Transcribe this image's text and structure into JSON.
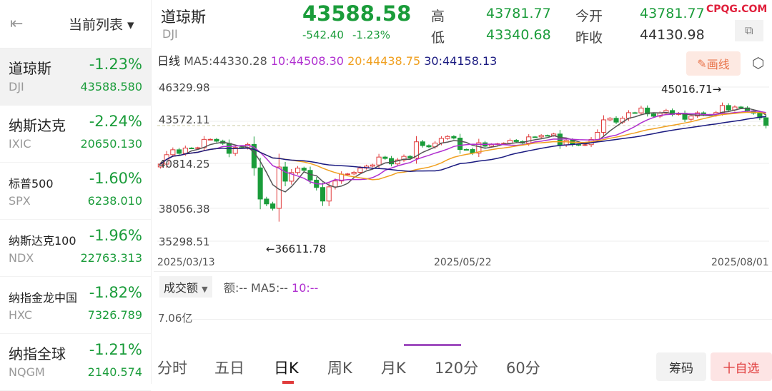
{
  "sidebar": {
    "title": "当前列表",
    "items": [
      {
        "name": "道琼斯",
        "code": "DJI",
        "pct": "-1.23%",
        "price": "43588.580"
      },
      {
        "name": "纳斯达克",
        "code": "IXIC",
        "pct": "-2.24%",
        "price": "20650.130"
      },
      {
        "name": "标普500",
        "code": "SPX",
        "pct": "-1.60%",
        "price": "6238.010"
      },
      {
        "name": "纳斯达克100",
        "code": "NDX",
        "pct": "-1.96%",
        "price": "22763.313"
      },
      {
        "name": "纳指金龙中国",
        "code": "HXC",
        "pct": "-1.82%",
        "price": "7326.789"
      },
      {
        "name": "纳指全球",
        "code": "NQGM",
        "pct": "-1.21%",
        "price": "2140.574"
      }
    ]
  },
  "header": {
    "name": "道琼斯",
    "code": "DJI",
    "price": "43588.58",
    "change": "-542.40",
    "pct": "-1.23%",
    "high_label": "高",
    "high": "43781.77",
    "low_label": "低",
    "low": "43340.68",
    "open_label": "今开",
    "open": "43781.77",
    "prev_label": "昨收",
    "prev": "44130.98",
    "watermark": "CPQG.COM"
  },
  "chart": {
    "period": "日线",
    "ma5": "MA5:44330.28",
    "ma10": "10:44508.30",
    "ma20": "20:44438.75",
    "ma30": "30:44158.13",
    "draw_label": "画线",
    "max_label": "45016.71→",
    "min_label": "←36611.78",
    "colors": {
      "up": "#e03c3c",
      "down": "#1a9c3a",
      "ma5": "#555555",
      "ma10": "#b030d0",
      "ma20": "#f0a020",
      "ma30": "#1a1a80"
    }
  },
  "volume": {
    "selector": "成交额",
    "amount": "额:--",
    "ma5": "MA5:--",
    "ma10": "10:--",
    "max_label": "7.06亿"
  },
  "tabs": [
    "分时",
    "五日",
    "日K",
    "周K",
    "月K",
    "120分",
    "60分"
  ],
  "active_tab": "日K",
  "buttons": {
    "chips": "筹码",
    "add_watch": "十自选"
  },
  "chart_data": {
    "type": "candlestick",
    "y_ticks": [
      "46329.98",
      "43572.11",
      "40814.25",
      "38056.38",
      "35298.51"
    ],
    "ylim": [
      35298.51,
      46329.98
    ],
    "x_ticks": [
      "2025/03/13",
      "2025/05/22",
      "2025/08/01"
    ],
    "last_price_line": 43572.11,
    "closes": [
      40813,
      41488,
      41841,
      41581,
      41964,
      41953,
      41985,
      42583,
      42587,
      42455,
      42300,
      41583,
      42001,
      41989,
      42225,
      40545,
      38314,
      37966,
      37645,
      40608,
      39593,
      40212,
      40524,
      40368,
      39669,
      39142,
      38170,
      39186,
      39606,
      40093,
      40113,
      40227,
      40527,
      40669,
      40752,
      41317,
      41218,
      40829,
      41113,
      41368,
      41249,
      42410,
      42140,
      42051,
      42322,
      42654,
      42792,
      42677,
      41860,
      41859,
      41603,
      42343,
      42098,
      42215,
      42270,
      42305,
      42519,
      42427,
      42319,
      42763,
      42762,
      42867,
      42865,
      42968,
      42197,
      42515,
      42215,
      42172,
      42206,
      42581,
      43089,
      43982,
      44094,
      43819,
      44094,
      44495,
      44484,
      44828,
      44406,
      44240,
      44458,
      44650,
      44371,
      44459,
      44023,
      44254,
      44484,
      44342,
      44323,
      44502,
      45010,
      44693,
      44901,
      44837,
      44632,
      44461,
      44130,
      43588
    ]
  }
}
